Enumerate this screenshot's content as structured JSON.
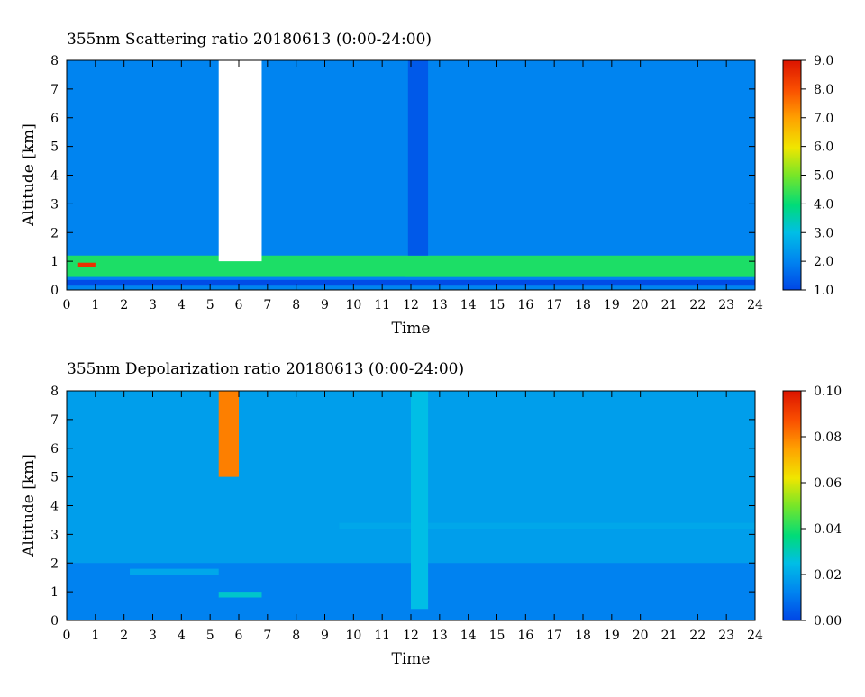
{
  "chart_data": [
    {
      "type": "heatmap",
      "title": "355nm Scattering ratio  20180613 (0:00-24:00)",
      "xlabel": "Time",
      "ylabel": "Altitude [km]",
      "xlim": [
        0,
        24
      ],
      "ylim": [
        0,
        8
      ],
      "x_ticks": [
        "0",
        "1",
        "2",
        "3",
        "4",
        "5",
        "6",
        "7",
        "8",
        "9",
        "10",
        "11",
        "12",
        "13",
        "14",
        "15",
        "16",
        "17",
        "18",
        "19",
        "20",
        "21",
        "22",
        "23",
        "24"
      ],
      "y_ticks": [
        "0",
        "1",
        "2",
        "3",
        "4",
        "5",
        "6",
        "7",
        "8"
      ],
      "colorbar": {
        "range": [
          1.0,
          9.0
        ],
        "tick_labels": [
          "1.0",
          "2.0",
          "3.0",
          "4.0",
          "5.0",
          "6.0",
          "7.0",
          "8.0",
          "9.0"
        ]
      },
      "background_value": 2.0,
      "features": [
        {
          "alt_from": 0.45,
          "alt_to": 1.2,
          "time_from": 0,
          "time_to": 24,
          "value": 4.2
        },
        {
          "alt_from": 0.35,
          "alt_to": 0.45,
          "time_from": 0,
          "time_to": 11.8,
          "value": 2.0
        },
        {
          "alt_from": 0.15,
          "alt_to": 0.35,
          "time_from": 0,
          "time_to": 24,
          "value": 1.1
        },
        {
          "alt_from": 0.8,
          "alt_to": 0.95,
          "time_from": 0.4,
          "time_to": 1.0,
          "value": 8.5
        },
        {
          "alt_from": 1.0,
          "alt_to": 8.0,
          "time_from": 5.3,
          "time_to": 6.8,
          "value": 9.5
        },
        {
          "alt_from": 1.2,
          "alt_to": 8.0,
          "time_from": 11.9,
          "time_to": 12.6,
          "value": 1.3
        }
      ]
    },
    {
      "type": "heatmap",
      "title": "355nm Depolarization ratio  20180613 (0:00-24:00)",
      "xlabel": "Time",
      "ylabel": "Altitude [km]",
      "xlim": [
        0,
        24
      ],
      "ylim": [
        0,
        8
      ],
      "x_ticks": [
        "0",
        "1",
        "2",
        "3",
        "4",
        "5",
        "6",
        "7",
        "8",
        "9",
        "10",
        "11",
        "12",
        "13",
        "14",
        "15",
        "16",
        "17",
        "18",
        "19",
        "20",
        "21",
        "22",
        "23",
        "24"
      ],
      "y_ticks": [
        "0",
        "1",
        "2",
        "3",
        "4",
        "5",
        "6",
        "7",
        "8"
      ],
      "colorbar": {
        "range": [
          0.0,
          0.1
        ],
        "tick_labels": [
          "0.00",
          "0.02",
          "0.04",
          "0.06",
          "0.08",
          "0.10"
        ]
      },
      "background_value": 0.012,
      "features": [
        {
          "alt_from": 2.0,
          "alt_to": 8.0,
          "time_from": 0,
          "time_to": 24,
          "value": 0.018
        },
        {
          "alt_from": 3.2,
          "alt_to": 3.4,
          "time_from": 9.5,
          "time_to": 24,
          "value": 0.02
        },
        {
          "alt_from": 1.6,
          "alt_to": 1.8,
          "time_from": 2.2,
          "time_to": 5.3,
          "value": 0.02
        },
        {
          "alt_from": 5.0,
          "alt_to": 8.0,
          "time_from": 5.3,
          "time_to": 6.0,
          "value": 0.08
        },
        {
          "alt_from": 0.8,
          "alt_to": 1.0,
          "time_from": 5.3,
          "time_to": 6.8,
          "value": 0.028
        },
        {
          "alt_from": 0.4,
          "alt_to": 8.0,
          "time_from": 12.0,
          "time_to": 12.6,
          "value": 0.025
        }
      ]
    }
  ]
}
